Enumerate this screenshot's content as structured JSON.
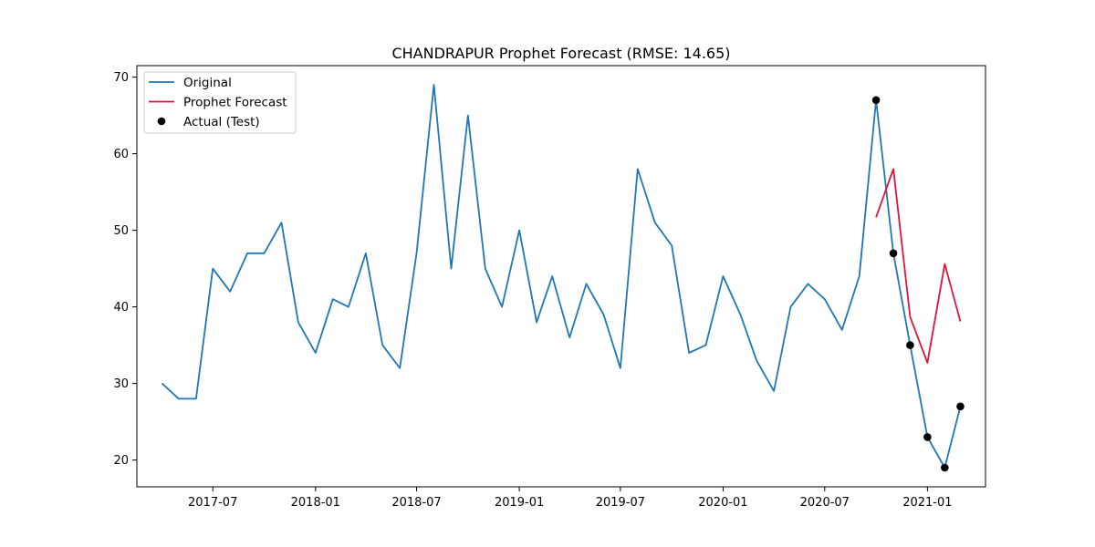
{
  "chart_data": {
    "type": "line",
    "title": "CHANDRAPUR Prophet Forecast (RMSE: 14.65)",
    "xlabel": "",
    "ylabel": "",
    "ylim": [
      16.5,
      71.5
    ],
    "xlim": [
      "2017-02-15",
      "2021-04-15"
    ],
    "x_ticks": [
      "2017-07",
      "2018-01",
      "2018-07",
      "2019-01",
      "2019-07",
      "2020-01",
      "2020-07",
      "2021-01"
    ],
    "y_ticks": [
      20,
      30,
      40,
      50,
      60,
      70
    ],
    "grid": false,
    "legend_position": "top-left",
    "series": [
      {
        "name": "Original",
        "kind": "line",
        "color": "#1f77b4",
        "points": [
          [
            "2017-04-01",
            30
          ],
          [
            "2017-05-01",
            28
          ],
          [
            "2017-06-01",
            28
          ],
          [
            "2017-07-01",
            45
          ],
          [
            "2017-08-01",
            42
          ],
          [
            "2017-09-01",
            47
          ],
          [
            "2017-10-01",
            47
          ],
          [
            "2017-11-01",
            51
          ],
          [
            "2017-12-01",
            38
          ],
          [
            "2018-01-01",
            34
          ],
          [
            "2018-02-01",
            41
          ],
          [
            "2018-03-01",
            40
          ],
          [
            "2018-04-01",
            47
          ],
          [
            "2018-05-01",
            35
          ],
          [
            "2018-06-01",
            32
          ],
          [
            "2018-07-01",
            47
          ],
          [
            "2018-08-01",
            69
          ],
          [
            "2018-09-01",
            45
          ],
          [
            "2018-10-01",
            65
          ],
          [
            "2018-11-01",
            45
          ],
          [
            "2018-12-01",
            40
          ],
          [
            "2019-01-01",
            50
          ],
          [
            "2019-02-01",
            38
          ],
          [
            "2019-03-01",
            44
          ],
          [
            "2019-04-01",
            36
          ],
          [
            "2019-05-01",
            43
          ],
          [
            "2019-06-01",
            39
          ],
          [
            "2019-07-01",
            32
          ],
          [
            "2019-08-01",
            58
          ],
          [
            "2019-09-01",
            51
          ],
          [
            "2019-10-01",
            48
          ],
          [
            "2019-11-01",
            34
          ],
          [
            "2019-12-01",
            35
          ],
          [
            "2020-01-01",
            44
          ],
          [
            "2020-02-01",
            39
          ],
          [
            "2020-03-01",
            33
          ],
          [
            "2020-04-01",
            29
          ],
          [
            "2020-05-01",
            40
          ],
          [
            "2020-06-01",
            43
          ],
          [
            "2020-07-01",
            41
          ],
          [
            "2020-08-01",
            37
          ],
          [
            "2020-09-01",
            44
          ],
          [
            "2020-10-01",
            67
          ],
          [
            "2020-11-01",
            47
          ],
          [
            "2020-12-01",
            35
          ],
          [
            "2021-01-01",
            23
          ],
          [
            "2021-02-01",
            19
          ],
          [
            "2021-03-01",
            27
          ]
        ]
      },
      {
        "name": "Prophet Forecast",
        "kind": "line",
        "color": "#dc143c",
        "points": [
          [
            "2020-10-01",
            51.7
          ],
          [
            "2020-11-01",
            58.0
          ],
          [
            "2020-12-01",
            38.7
          ],
          [
            "2021-01-01",
            32.7
          ],
          [
            "2021-02-01",
            45.6
          ],
          [
            "2021-03-01",
            38.1
          ]
        ]
      },
      {
        "name": "Actual (Test)",
        "kind": "scatter",
        "color": "#000000",
        "points": [
          [
            "2020-10-01",
            67
          ],
          [
            "2020-11-01",
            47
          ],
          [
            "2020-12-01",
            35
          ],
          [
            "2021-01-01",
            23
          ],
          [
            "2021-02-01",
            19
          ],
          [
            "2021-03-01",
            27
          ]
        ]
      }
    ]
  }
}
